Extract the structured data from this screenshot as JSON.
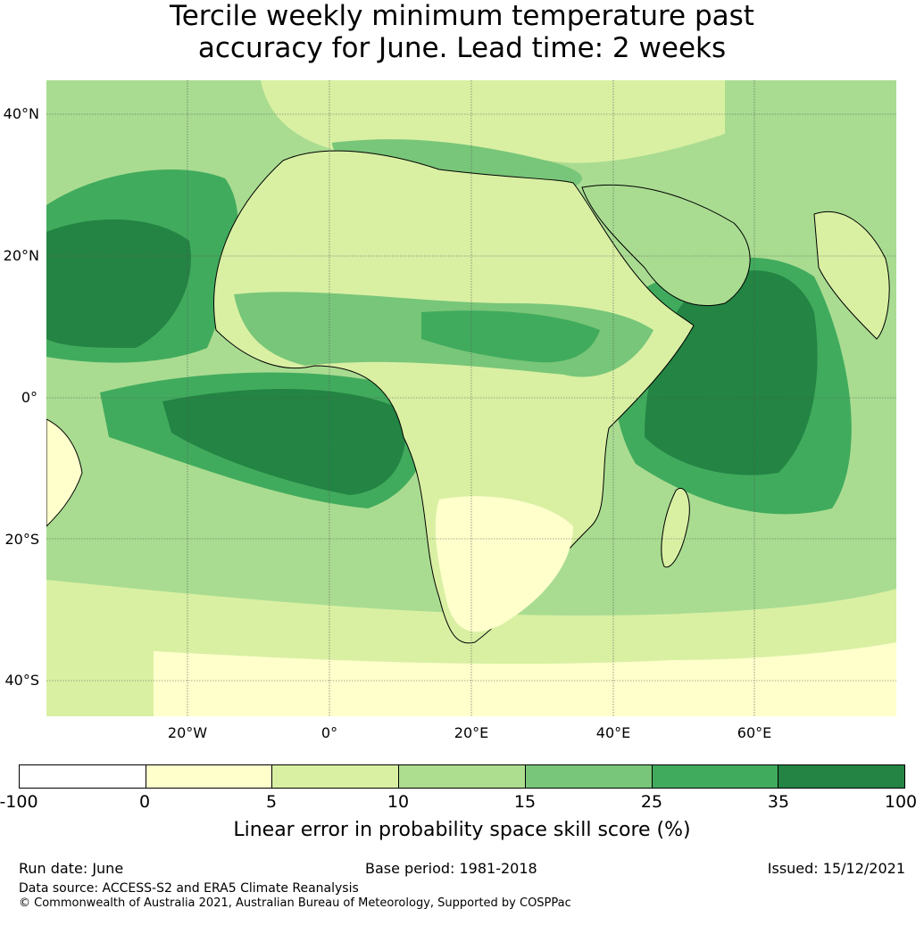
{
  "title_line1": "Tercile weekly minimum temperature past",
  "title_line2": "accuracy for June. Lead time: 2 weeks",
  "lat_labels": [
    "40°N",
    "20°N",
    "0°",
    "20°S",
    "40°S"
  ],
  "lon_labels": [
    "20°W",
    "0°",
    "20°E",
    "40°E",
    "60°E"
  ],
  "colorbar": {
    "ticks": [
      "-100",
      "0",
      "5",
      "10",
      "15",
      "25",
      "35",
      "100"
    ],
    "colors": [
      "#ffffff",
      "#ffffcc",
      "#d9f0a3",
      "#addd8e",
      "#78c679",
      "#41ab5d",
      "#238443"
    ],
    "label": "Linear error in probability space skill score (%)"
  },
  "footer": {
    "run_date": "Run date: June",
    "base_period": "Base period: 1981-2018",
    "issued": "Issued: 15/12/2021",
    "data_source": "Data source: ACCESS-S2 and ERA5 Climate Reanalysis",
    "copyright": "© Commonwealth of Australia 2021, Australian Bureau of Meteorology, Supported by COSPPac"
  }
}
